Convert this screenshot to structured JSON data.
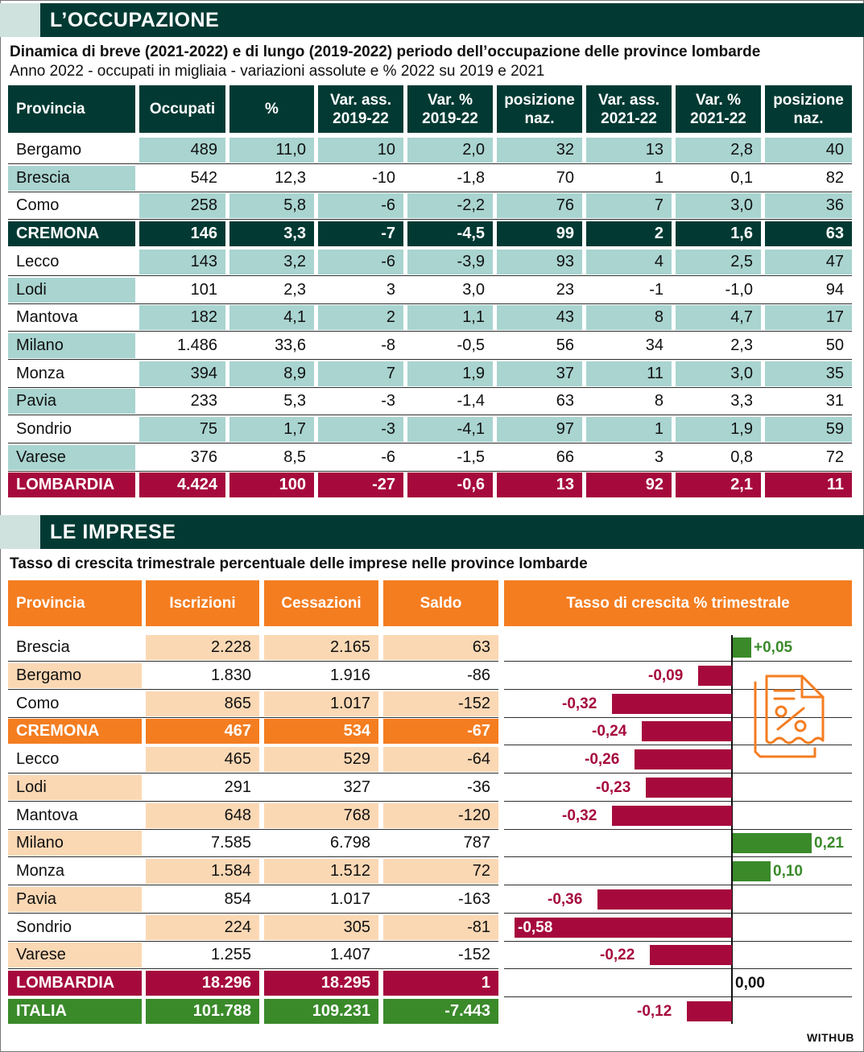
{
  "occupazione": {
    "title": "L’OCCUPAZIONE",
    "subtitle": "Dinamica di breve (2021-2022) e di lungo (2019-2022) periodo dell’occupazione delle province lombarde",
    "subtitle2": "Anno 2022 - occupati in migliaia - variazioni assolute e % 2022 su 2019 e 2021",
    "headers": [
      "Provincia",
      "Occupati",
      "%",
      "Var. ass.\n2019-22",
      "Var. %\n2019-22",
      "posizione\nnaz.",
      "Var. ass.\n2021-22",
      "Var. %\n2021-22",
      "posizione\nnaz."
    ],
    "rows": [
      [
        "Bergamo",
        "489",
        "11,0",
        "10",
        "2,0",
        "32",
        "13",
        "2,8",
        "40"
      ],
      [
        "Brescia",
        "542",
        "12,3",
        "-10",
        "-1,8",
        "70",
        "1",
        "0,1",
        "82"
      ],
      [
        "Como",
        "258",
        "5,8",
        "-6",
        "-2,2",
        "76",
        "7",
        "3,0",
        "36"
      ],
      [
        "CREMONA",
        "146",
        "3,3",
        "-7",
        "-4,5",
        "99",
        "2",
        "1,6",
        "63"
      ],
      [
        "Lecco",
        "143",
        "3,2",
        "-6",
        "-3,9",
        "93",
        "4",
        "2,5",
        "47"
      ],
      [
        "Lodi",
        "101",
        "2,3",
        "3",
        "3,0",
        "23",
        "-1",
        "-1,0",
        "94"
      ],
      [
        "Mantova",
        "182",
        "4,1",
        "2",
        "1,1",
        "43",
        "8",
        "4,7",
        "17"
      ],
      [
        "Milano",
        "1.486",
        "33,6",
        "-8",
        "-0,5",
        "56",
        "34",
        "2,3",
        "50"
      ],
      [
        "Monza",
        "394",
        "8,9",
        "7",
        "1,9",
        "37",
        "11",
        "3,0",
        "35"
      ],
      [
        "Pavia",
        "233",
        "5,3",
        "-3",
        "-1,4",
        "63",
        "8",
        "3,3",
        "31"
      ],
      [
        "Sondrio",
        "75",
        "1,7",
        "-3",
        "-4,1",
        "97",
        "1",
        "1,9",
        "59"
      ],
      [
        "Varese",
        "376",
        "8,5",
        "-6",
        "-1,5",
        "66",
        "3",
        "0,8",
        "72"
      ],
      [
        "LOMBARDIA",
        "4.424",
        "100",
        "-27",
        "-0,6",
        "13",
        "92",
        "2,1",
        "11"
      ]
    ],
    "highlight_rows": {
      "3": "#023a33",
      "12": "#a60a3d"
    }
  },
  "imprese": {
    "title": "LE IMPRESE",
    "subtitle": "Tasso di crescita trimestrale percentuale delle imprese nelle province lombarde",
    "headers": [
      "Provincia",
      "Iscrizioni",
      "Cessazioni",
      "Saldo",
      "Tasso di crescita % trimestrale"
    ],
    "rows": [
      [
        "Brescia",
        "2.228",
        "2.165",
        "63"
      ],
      [
        "Bergamo",
        "1.830",
        "1.916",
        "-86"
      ],
      [
        "Como",
        "865",
        "1.017",
        "-152"
      ],
      [
        "CREMONA",
        "467",
        "534",
        "-67"
      ],
      [
        "Lecco",
        "465",
        "529",
        "-64"
      ],
      [
        "Lodi",
        "291",
        "327",
        "-36"
      ],
      [
        "Mantova",
        "648",
        "768",
        "-120"
      ],
      [
        "Milano",
        "7.585",
        "6.798",
        "787"
      ],
      [
        "Monza",
        "1.584",
        "1.512",
        "72"
      ],
      [
        "Pavia",
        "854",
        "1.017",
        "-163"
      ],
      [
        "Sondrio",
        "224",
        "305",
        "-81"
      ],
      [
        "Varese",
        "1.255",
        "1.407",
        "-152"
      ],
      [
        "LOMBARDIA",
        "18.296",
        "18.295",
        "1"
      ],
      [
        "ITALIA",
        "101.788",
        "109.231",
        "-7.443"
      ]
    ],
    "highlight_rows": {
      "3": "#f47d20",
      "12": "#a60a3d",
      "13": "#3a8a2a"
    }
  },
  "chart_data": {
    "type": "bar",
    "orientation": "horizontal",
    "title": "Tasso di crescita % trimestrale",
    "categories": [
      "Brescia",
      "Bergamo",
      "Como",
      "CREMONA",
      "Lecco",
      "Lodi",
      "Mantova",
      "Milano",
      "Monza",
      "Pavia",
      "Sondrio",
      "Varese",
      "LOMBARDIA",
      "ITALIA"
    ],
    "values": [
      0.05,
      -0.09,
      -0.32,
      -0.24,
      -0.26,
      -0.23,
      -0.32,
      0.21,
      0.1,
      -0.36,
      -0.58,
      -0.22,
      0.0,
      -0.12
    ],
    "labels": [
      "+0,05",
      "-0,09",
      "-0,32",
      "-0,24",
      "-0,26",
      "-0,23",
      "-0,32",
      "0,21",
      "0,10",
      "-0,36",
      "-0,58",
      "-0,22",
      "0,00",
      "-0,12"
    ],
    "colors": {
      "positive": "#3a8a2a",
      "negative": "#a60a3d",
      "zero_label": "#111111"
    }
  },
  "colors": {
    "teal_dark": "#023a33",
    "teal_light": "#a9d4d0",
    "orange": "#f47d20",
    "orange_light": "#fbd8b4",
    "crimson": "#a60a3d",
    "green": "#3a8a2a"
  },
  "icon": "document-percent-icon",
  "credit": "WITHUB"
}
